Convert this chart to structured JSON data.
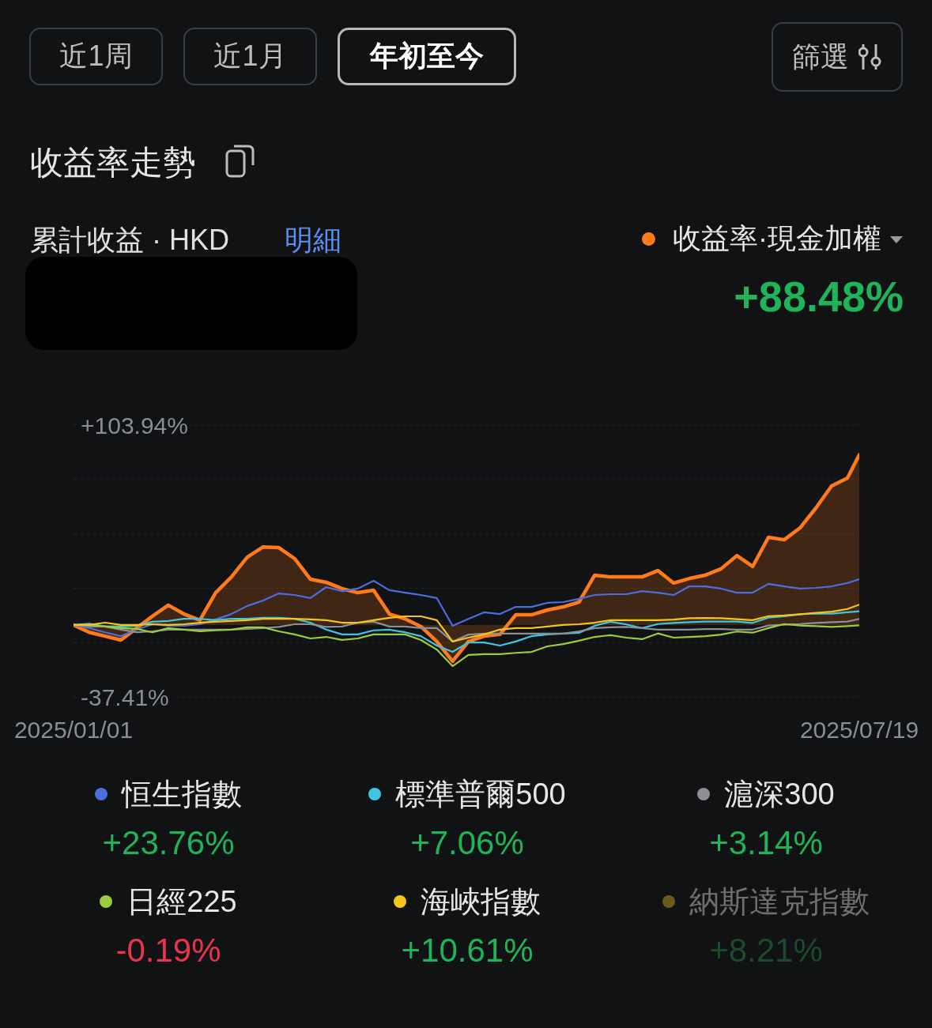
{
  "chart_data": {
    "type": "line",
    "title": "收益率走勢",
    "annotations": [
      "近1周",
      "近1月",
      "年初至今",
      "篩選",
      "累計收益 · HKD",
      "明細",
      "+88.48%",
      "+23.76%",
      "+7.06%",
      "+3.14%",
      "-0.19%",
      "+10.61%",
      "+8.21%"
    ],
    "x": [
      "2025-01-01",
      "2025-01-05",
      "2025-01-09",
      "2025-01-13",
      "2025-01-17",
      "2025-01-21",
      "2025-01-25",
      "2025-01-29",
      "2025-02-02",
      "2025-02-06",
      "2025-02-10",
      "2025-02-14",
      "2025-02-18",
      "2025-02-22",
      "2025-02-26",
      "2025-03-02",
      "2025-03-06",
      "2025-03-10",
      "2025-03-14",
      "2025-03-18",
      "2025-03-22",
      "2025-03-26",
      "2025-03-30",
      "2025-04-03",
      "2025-04-07",
      "2025-04-11",
      "2025-04-15",
      "2025-04-19",
      "2025-04-23",
      "2025-04-27",
      "2025-05-01",
      "2025-05-05",
      "2025-05-09",
      "2025-05-13",
      "2025-05-17",
      "2025-05-21",
      "2025-05-25",
      "2025-05-29",
      "2025-06-02",
      "2025-06-06",
      "2025-06-10",
      "2025-06-14",
      "2025-06-18",
      "2025-06-22",
      "2025-06-26",
      "2025-06-30",
      "2025-07-04",
      "2025-07-08",
      "2025-07-12",
      "2025-07-16",
      "2025-07-19"
    ],
    "xlim": [
      "2025-01-01",
      "2025-07-19"
    ],
    "xticks": [
      {
        "value": "2025-01-01",
        "label": "2025/01/01"
      },
      {
        "value": "2025-07-19",
        "label": "2025/07/19"
      }
    ],
    "ylim": [
      -37.41,
      103.94
    ],
    "yticks": [
      {
        "value": -37.41,
        "label": "-37.41%"
      },
      {
        "value": -9.14,
        "label": null
      },
      {
        "value": 19.13,
        "label": null
      },
      {
        "value": 47.4,
        "label": null
      },
      {
        "value": 75.67,
        "label": null
      },
      {
        "value": 103.94,
        "label": "+103.94%"
      }
    ],
    "grid": "y",
    "legend": "bottom",
    "marker": "none",
    "line_style": "solid",
    "series": [
      {
        "name": "收益率·現金加權",
        "type": "area",
        "color": "#ff7a1a",
        "values": [
          0,
          -3.8,
          -5.8,
          -7.8,
          -1.6,
          4.6,
          10.3,
          5.7,
          2.5,
          16.8,
          25.0,
          35.3,
          40.6,
          40.2,
          34.5,
          23.8,
          22.2,
          18.9,
          16.8,
          18.1,
          5.7,
          3.2,
          -0.8,
          -8.6,
          -18.9,
          -8.6,
          -5.8,
          -4.9,
          5.3,
          5.3,
          7.8,
          9.4,
          11.9,
          25.9,
          25.0,
          25.0,
          25.0,
          28.3,
          21.8,
          24.2,
          25.9,
          29.2,
          36.1,
          30.4,
          45.6,
          44.3,
          50.5,
          60.8,
          72.3,
          76.4,
          88.5
        ]
      },
      {
        "name": "恒生指數",
        "color": "#4a6ee0",
        "values": [
          0,
          -1.6,
          -3.8,
          -5.8,
          -2.4,
          0.4,
          -0.4,
          -0.4,
          0.4,
          2.9,
          5.7,
          9.9,
          12.7,
          16.4,
          15.6,
          14.0,
          19.7,
          17.6,
          18.9,
          23.0,
          18.1,
          16.8,
          15.6,
          14.0,
          -0.4,
          3.2,
          6.6,
          5.7,
          9.4,
          9.4,
          11.5,
          11.9,
          13.6,
          15.6,
          16.0,
          16.0,
          17.6,
          16.8,
          15.6,
          20.1,
          20.1,
          18.9,
          16.8,
          16.8,
          21.4,
          20.1,
          18.9,
          19.3,
          20.1,
          21.8,
          23.8
        ]
      },
      {
        "name": "標準普爾500",
        "color": "#3ec6e0",
        "values": [
          0,
          0.7,
          -0.8,
          -0.8,
          -0.4,
          1.7,
          2.1,
          3.2,
          3.2,
          2.5,
          3.2,
          3.2,
          3.7,
          3.7,
          3.2,
          1.2,
          -2.4,
          -4.9,
          -4.9,
          -2.8,
          -2.4,
          -3.8,
          -5.8,
          -10.7,
          -14.0,
          -9.1,
          -9.1,
          -10.7,
          -8.6,
          -5.8,
          -4.9,
          -4.5,
          -4.1,
          -0.4,
          1.7,
          0.3,
          -1.6,
          0.5,
          1.1,
          1.5,
          1.8,
          1.8,
          1.8,
          1.1,
          3.8,
          4.5,
          5.6,
          5.9,
          5.9,
          6.6,
          7.1
        ]
      },
      {
        "name": "滬深300",
        "color": "#8e8e96",
        "values": [
          0,
          -0.8,
          -0.8,
          -2.4,
          -3.8,
          -3.3,
          -2.4,
          -2.4,
          -2.4,
          -2.4,
          -2.4,
          -2.0,
          -1.6,
          -1.0,
          0.4,
          0.4,
          -1.0,
          -0.8,
          1.2,
          1.7,
          -0.8,
          -0.8,
          -1.6,
          -1.6,
          -8.6,
          -5.0,
          -4.5,
          -4.5,
          -4.5,
          -4.5,
          -4.5,
          -4.5,
          -3.3,
          -1.6,
          -1.2,
          -1.0,
          -1.6,
          -2.4,
          -2.4,
          -2.4,
          -2.1,
          -2.1,
          -2.4,
          -2.4,
          -0.3,
          0.1,
          0.5,
          1.1,
          1.5,
          1.8,
          3.1
        ]
      },
      {
        "name": "日經225",
        "color": "#9ccc3c",
        "values": [
          0,
          0,
          -0.8,
          -1.6,
          -2.0,
          -3.8,
          -1.6,
          -2.4,
          -3.3,
          -2.8,
          -2.4,
          -1.2,
          -1.2,
          -3.3,
          -4.9,
          -7.0,
          -6.2,
          -7.8,
          -7.0,
          -4.9,
          -4.9,
          -4.9,
          -7.8,
          -12.8,
          -21.4,
          -15.6,
          -15.2,
          -15.2,
          -14.5,
          -14.0,
          -11.1,
          -9.9,
          -8.2,
          -6.2,
          -5.3,
          -6.6,
          -7.4,
          -4.4,
          -6.6,
          -6.2,
          -5.8,
          -5.0,
          -3.4,
          -4.0,
          -1.6,
          0.5,
          -0.3,
          -0.6,
          -1.0,
          -0.6,
          -0.2
        ]
      },
      {
        "name": "海峽指數",
        "color": "#f5c518",
        "values": [
          0,
          0,
          1.2,
          0,
          0,
          0.4,
          0,
          0.4,
          1.2,
          1.7,
          2.1,
          2.5,
          3.2,
          3.2,
          3.2,
          2.9,
          2.5,
          1.2,
          1.2,
          2.5,
          3.7,
          4.5,
          4.5,
          2.5,
          -8.6,
          -6.6,
          -4.9,
          -2.4,
          -1.6,
          -1.6,
          -0.8,
          0,
          0.4,
          1.2,
          2.5,
          2.5,
          2.5,
          2.5,
          2.8,
          3.5,
          3.6,
          3.5,
          3.0,
          2.5,
          4.6,
          5.0,
          5.6,
          6.3,
          6.9,
          8.3,
          10.6
        ]
      },
      {
        "name": "納斯達克指數",
        "color": "#6b5a1a",
        "values": [
          null,
          null,
          null,
          null,
          null,
          null,
          null,
          null,
          null,
          null,
          null,
          null,
          null,
          null,
          null,
          null,
          null,
          null,
          null,
          null,
          null,
          null,
          null,
          null,
          null,
          null,
          null,
          null,
          null,
          null,
          null,
          null,
          null,
          null,
          null,
          null,
          null,
          null,
          null,
          null,
          null,
          null,
          null,
          null,
          null,
          null,
          null,
          null,
          null,
          null,
          null
        ]
      }
    ]
  }
}
